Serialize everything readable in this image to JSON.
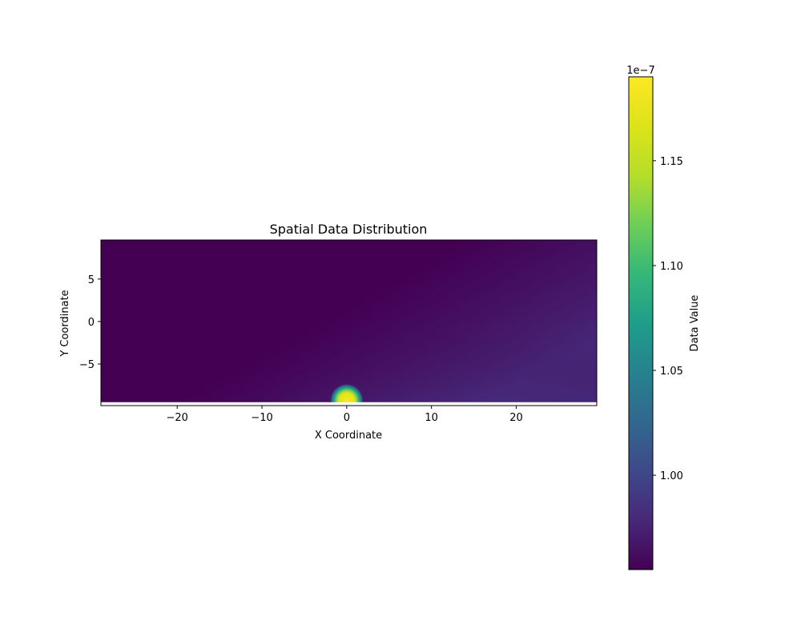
{
  "chart_data": {
    "type": "heatmap",
    "title": "Spatial Data Distribution",
    "xlabel": "X Coordinate",
    "ylabel": "Y Coordinate",
    "xlim": [
      -29,
      29.5
    ],
    "ylim": [
      -9.9,
      9.6
    ],
    "xticks": [
      {
        "value": -20,
        "label": "−20"
      },
      {
        "value": -10,
        "label": "−10"
      },
      {
        "value": 0,
        "label": "0"
      },
      {
        "value": 10,
        "label": "10"
      },
      {
        "value": 20,
        "label": "20"
      }
    ],
    "yticks": [
      {
        "value": 5,
        "label": "5"
      },
      {
        "value": 0,
        "label": "0"
      },
      {
        "value": -5,
        "label": "−5"
      }
    ],
    "colormap": "viridis",
    "peak": {
      "x": 0,
      "y": -9.3,
      "value": 1.19e-07
    },
    "background_value": 9.55e-08,
    "data_region_bottom_y": -9.5,
    "colorbar": {
      "label": "Data Value",
      "offset_label": "1e−7",
      "range": [
        0.955,
        1.19
      ],
      "ticks": [
        {
          "value": 1.0,
          "label": "1.00"
        },
        {
          "value": 1.05,
          "label": "1.05"
        },
        {
          "value": 1.1,
          "label": "1.10"
        },
        {
          "value": 1.15,
          "label": "1.15"
        }
      ]
    },
    "grid": false
  }
}
